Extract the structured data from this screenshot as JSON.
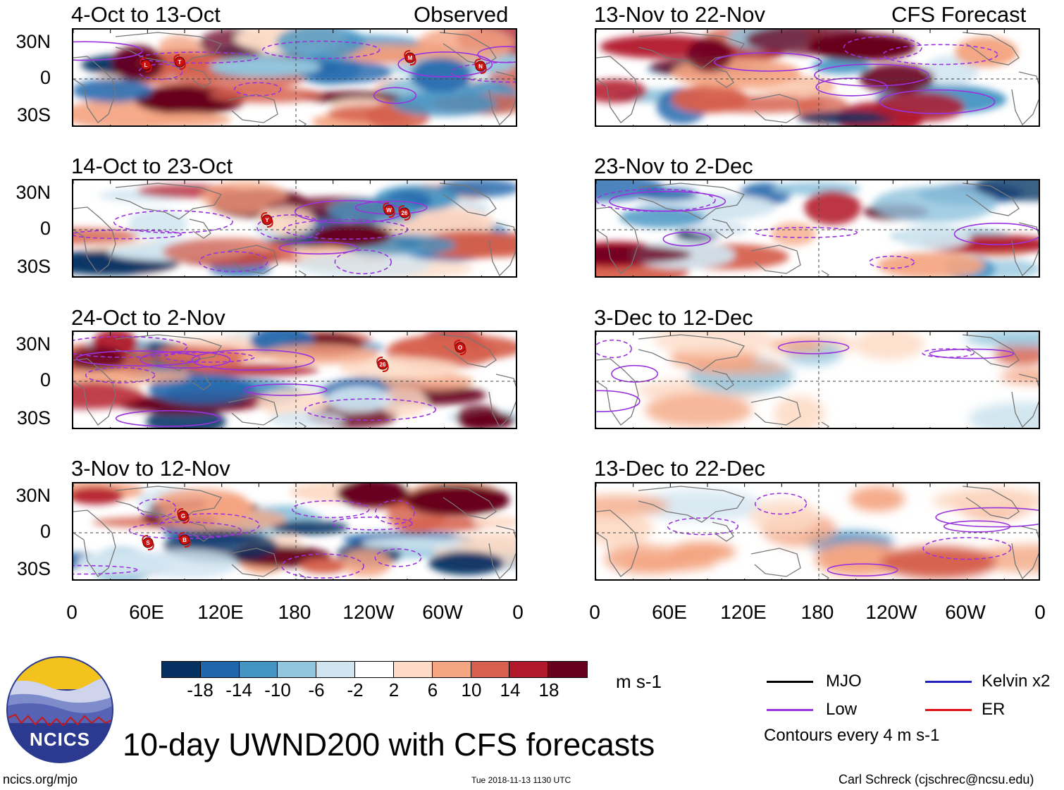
{
  "panels": {
    "observed": [
      {
        "title": "4-Oct to 13-Oct",
        "label": "Observed",
        "storms": [
          "L",
          "T",
          "M",
          "N"
        ]
      },
      {
        "title": "14-Oct to 23-Oct",
        "label": "",
        "storms": [
          "Y",
          "W",
          "26"
        ]
      },
      {
        "title": "24-Oct to 2-Nov",
        "label": "",
        "storms": [
          "26",
          "O"
        ]
      },
      {
        "title": "3-Nov to 12-Nov",
        "label": "",
        "storms": [
          "G",
          "B",
          "S"
        ]
      }
    ],
    "forecast": [
      {
        "title": "13-Nov to 22-Nov",
        "label": "CFS Forecast"
      },
      {
        "title": "23-Nov to 2-Dec",
        "label": ""
      },
      {
        "title": "3-Dec to 12-Dec",
        "label": ""
      },
      {
        "title": "13-Dec to 22-Dec",
        "label": ""
      }
    ]
  },
  "y_ticks": [
    "30N",
    "0",
    "30S"
  ],
  "x_ticks": [
    "0",
    "60E",
    "120E",
    "180",
    "120W",
    "60W",
    "0"
  ],
  "colorbar": {
    "labels": [
      "-18",
      "-14",
      "-10",
      "-6",
      "-2",
      "2",
      "6",
      "10",
      "14",
      "18"
    ],
    "colors": [
      "#053061",
      "#2166ac",
      "#4393c3",
      "#92c5de",
      "#d1e5f0",
      "#ffffff",
      "#fddbc7",
      "#f4a582",
      "#d6604d",
      "#b2182b",
      "#67001f"
    ],
    "units": "m s-1"
  },
  "legend": {
    "items": [
      {
        "label": "MJO",
        "color": "#000000"
      },
      {
        "label": "Kelvin x2",
        "color": "#2222bb"
      },
      {
        "label": "Low",
        "color": "#9933dd"
      },
      {
        "label": "ER",
        "color": "#dd1111"
      }
    ],
    "contours_note": "Contours every 4 m s-1"
  },
  "logo_text": "NCICS",
  "main_title": "10-day UWND200 with CFS forecasts",
  "footer": {
    "left": "ncics.org/mjo",
    "center": "Tue 2018-11-13 1130 UTC",
    "right": "Carl Schreck (cjschrec@ncsu.edu)"
  }
}
